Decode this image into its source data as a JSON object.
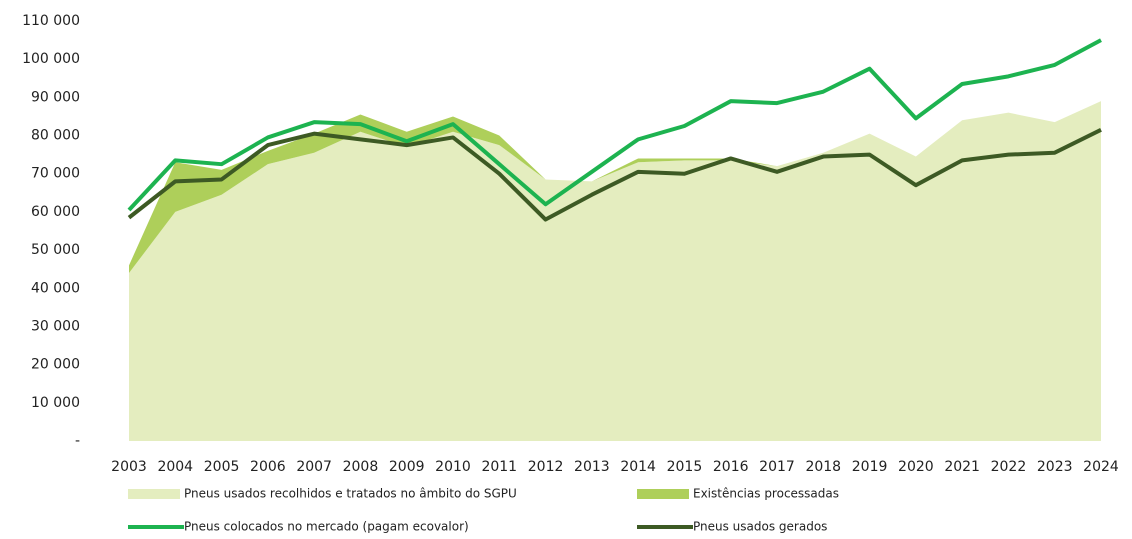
{
  "chart_data": {
    "type": "line",
    "categories": [
      "2003",
      "2004",
      "2005",
      "2006",
      "2007",
      "2008",
      "2009",
      "2010",
      "2011",
      "2012",
      "2013",
      "2014",
      "2015",
      "2016",
      "2017",
      "2018",
      "2019",
      "2020",
      "2021",
      "2022",
      "2023",
      "2024"
    ],
    "ylim": [
      0,
      110000
    ],
    "yticks": [
      {
        "value": 0,
        "label": "-"
      },
      {
        "value": 10000,
        "label": "10 000"
      },
      {
        "value": 20000,
        "label": "20 000"
      },
      {
        "value": 30000,
        "label": "30 000"
      },
      {
        "value": 40000,
        "label": "40 000"
      },
      {
        "value": 50000,
        "label": "50 000"
      },
      {
        "value": 60000,
        "label": "60 000"
      },
      {
        "value": 70000,
        "label": "70 000"
      },
      {
        "value": 80000,
        "label": "80 000"
      },
      {
        "value": 90000,
        "label": "90 000"
      },
      {
        "value": 100000,
        "label": "100 000"
      },
      {
        "value": 110000,
        "label": "110 000"
      }
    ],
    "series": [
      {
        "name": "Pneus usados recolhidos e tratados no âmbito do SGPU",
        "type": "area",
        "color": "#e4edbf",
        "values": [
          44000,
          60000,
          64500,
          72500,
          75500,
          81000,
          77000,
          81000,
          77500,
          68500,
          68000,
          73000,
          73500,
          73500,
          72000,
          75500,
          80500,
          74500,
          84000,
          86000,
          83500,
          89000
        ]
      },
      {
        "name": "Existências processadas",
        "type": "area",
        "stacked": true,
        "color": "#aecf5a",
        "values": [
          2000,
          13000,
          6500,
          3500,
          5000,
          4500,
          4000,
          4000,
          2500,
          0,
          0,
          1000,
          500,
          500,
          0,
          0,
          0,
          0,
          0,
          0,
          0,
          0
        ]
      },
      {
        "name": "Pneus colocados no mercado (pagam ecovalor)",
        "type": "line",
        "color": "#1db350",
        "values": [
          60500,
          73500,
          72500,
          79500,
          83500,
          83000,
          78500,
          83000,
          72500,
          62000,
          70500,
          79000,
          82500,
          89000,
          88500,
          91500,
          97500,
          84500,
          93500,
          95500,
          98500,
          105000
        ]
      },
      {
        "name": "Pneus usados gerados",
        "type": "line",
        "color": "#3d5a24",
        "values": [
          58500,
          68000,
          68500,
          77500,
          80500,
          79000,
          77500,
          79500,
          70000,
          58000,
          64500,
          70500,
          70000,
          74000,
          70500,
          74500,
          75000,
          67000,
          73500,
          75000,
          75500,
          81500
        ]
      }
    ]
  }
}
